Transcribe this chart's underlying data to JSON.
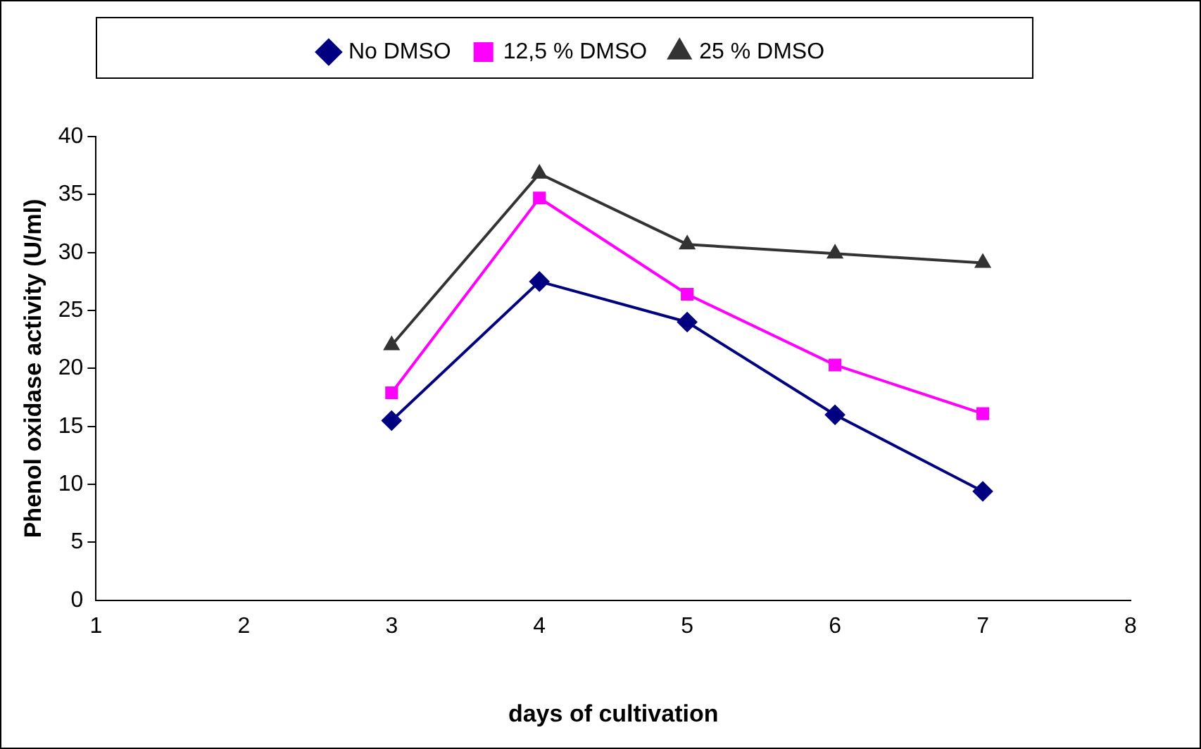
{
  "chart_data": {
    "type": "line",
    "xlabel": "days of cultivation",
    "ylabel": "Phenol oxidase activity (U/ml)",
    "x": [
      3,
      4,
      5,
      6,
      7
    ],
    "series": [
      {
        "name": "No DMSO",
        "color": "#000080",
        "marker": "diamond",
        "values": [
          15.5,
          27.5,
          24,
          16,
          9.4
        ]
      },
      {
        "name": "12,5 % DMSO",
        "color": "#ff00ff",
        "marker": "square",
        "values": [
          17.9,
          34.7,
          26.4,
          20.3,
          16.1
        ]
      },
      {
        "name": "25 % DMSO",
        "color": "#333333",
        "marker": "triangle",
        "values": [
          22,
          36.8,
          30.7,
          29.9,
          29.1
        ]
      }
    ],
    "xlim": [
      1,
      8
    ],
    "xticks": [
      1,
      2,
      3,
      4,
      5,
      6,
      7,
      8
    ],
    "ylim": [
      0,
      40
    ],
    "yticks": [
      0,
      5,
      10,
      15,
      20,
      25,
      30,
      35,
      40
    ],
    "grid": false,
    "legend": "top",
    "line_style": "solid"
  }
}
